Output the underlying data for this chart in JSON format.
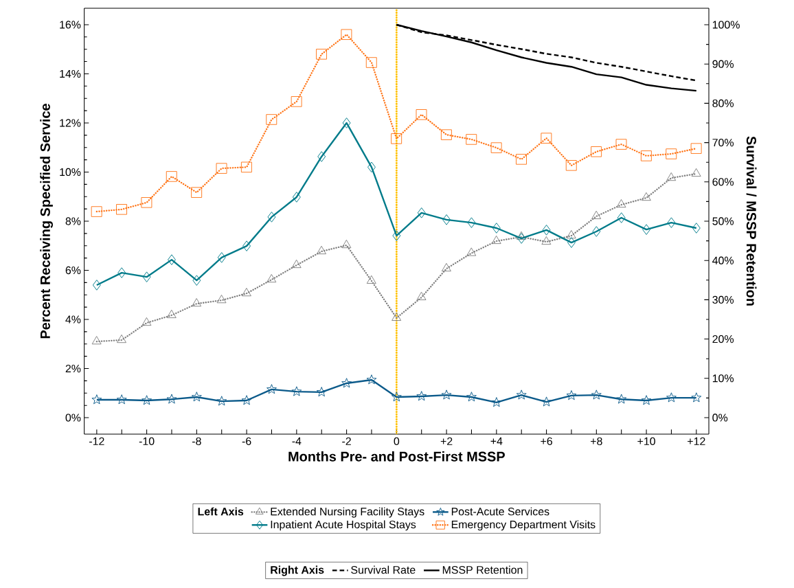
{
  "chart_data": {
    "type": "line",
    "xlabel": "Months Pre- and Post-First MSSP",
    "ylabel": "Percent Receiving Specified Service",
    "y2label": "Survival / MSSP Retention",
    "x": [
      -12,
      -11,
      -10,
      -9,
      -8,
      -7,
      -6,
      -5,
      -4,
      -3,
      -2,
      -1,
      0,
      1,
      2,
      3,
      4,
      5,
      6,
      7,
      8,
      9,
      10,
      11,
      12
    ],
    "series": [
      {
        "name": "Extended Nursing Facility Stays",
        "color": "#808080",
        "marker": "triangle",
        "line_style": "dotted",
        "values": [
          3.1,
          3.16,
          3.86,
          4.17,
          4.64,
          4.78,
          5.06,
          5.62,
          6.21,
          6.77,
          7.02,
          5.57,
          4.06,
          4.9,
          6.07,
          6.7,
          7.19,
          7.36,
          7.16,
          7.41,
          8.2,
          8.67,
          8.95,
          9.76,
          9.93
        ]
      },
      {
        "name": "Post-Acute Services",
        "color": "#0b5a8a",
        "marker": "star",
        "line_style": "solid",
        "values": [
          0.73,
          0.73,
          0.7,
          0.75,
          0.84,
          0.67,
          0.7,
          1.15,
          1.06,
          1.04,
          1.4,
          1.54,
          0.84,
          0.87,
          0.92,
          0.84,
          0.62,
          0.92,
          0.64,
          0.9,
          0.92,
          0.75,
          0.7,
          0.81,
          0.81
        ]
      },
      {
        "name": "Inpatient Acute Hospital Stays",
        "color": "#007b8a",
        "marker": "diamond",
        "line_style": "solid",
        "values": [
          5.4,
          5.9,
          5.73,
          6.43,
          5.59,
          6.52,
          6.99,
          8.17,
          8.98,
          10.63,
          12.0,
          10.2,
          7.41,
          8.34,
          8.06,
          7.94,
          7.72,
          7.3,
          7.64,
          7.13,
          7.58,
          8.14,
          7.66,
          7.94,
          7.72
        ]
      },
      {
        "name": "Emergency Department Visits",
        "color": "#ff7518",
        "marker": "square",
        "line_style": "dotted",
        "values": [
          8.39,
          8.48,
          8.76,
          9.82,
          9.17,
          10.15,
          10.2,
          12.14,
          12.87,
          14.8,
          15.6,
          14.46,
          11.36,
          12.34,
          11.52,
          11.33,
          10.99,
          10.52,
          11.38,
          10.27,
          10.83,
          11.13,
          10.66,
          10.74,
          10.96
        ]
      },
      {
        "name": "Survival Rate",
        "color": "#000000",
        "axis": "y2",
        "marker": "none",
        "line_style": "dashed",
        "x": [
          0,
          1,
          2,
          3,
          4,
          5,
          6,
          7,
          8,
          9,
          10,
          11,
          12
        ],
        "values": [
          100,
          98.1,
          97.3,
          96.1,
          94.9,
          93.8,
          92.6,
          91.7,
          90.3,
          89.3,
          88.1,
          86.9,
          85.8
        ]
      },
      {
        "name": "MSSP Retention",
        "color": "#000000",
        "axis": "y2",
        "marker": "none",
        "line_style": "solid",
        "x": [
          0,
          1,
          2,
          3,
          4,
          5,
          6,
          7,
          8,
          9,
          10,
          11,
          12
        ],
        "values": [
          100,
          98.4,
          97.0,
          95.5,
          93.5,
          91.7,
          90.3,
          89.3,
          87.4,
          86.6,
          84.7,
          83.8,
          83.2
        ]
      }
    ],
    "xlim": [
      -12.5,
      12.5
    ],
    "xticks": [
      -12,
      {
        "value": -11,
        "label": null
      },
      -10,
      {
        "value": -9,
        "label": null
      },
      -8,
      {
        "value": -7,
        "label": null
      },
      -6,
      {
        "value": -5,
        "label": null
      },
      -4,
      {
        "value": -3,
        "label": null
      },
      -2,
      {
        "value": -1,
        "label": null
      },
      0,
      {
        "value": 1,
        "label": null
      },
      {
        "value": 2,
        "label": "+2"
      },
      {
        "value": 3,
        "label": null
      },
      {
        "value": 4,
        "label": "+4"
      },
      {
        "value": 5,
        "label": null
      },
      {
        "value": 6,
        "label": "+6"
      },
      {
        "value": 7,
        "label": null
      },
      {
        "value": 8,
        "label": "+8"
      },
      {
        "value": 9,
        "label": null
      },
      {
        "value": 10,
        "label": "+10"
      },
      {
        "value": 11,
        "label": null
      },
      {
        "value": 12,
        "label": "+12"
      }
    ],
    "ylim": [
      -0.67,
      16.67
    ],
    "yticks": [
      {
        "value": 0,
        "label": "0%"
      },
      {
        "value": 2,
        "label": "2%"
      },
      {
        "value": 4,
        "label": "4%"
      },
      {
        "value": 6,
        "label": "6%"
      },
      {
        "value": 8,
        "label": "8%"
      },
      {
        "value": 10,
        "label": "10%"
      },
      {
        "value": 12,
        "label": "12%"
      },
      {
        "value": 14,
        "label": "14%"
      },
      {
        "value": 16,
        "label": "16%"
      }
    ],
    "y2lim": [
      -4.2,
      104.2
    ],
    "y2ticks": [
      {
        "value": 0,
        "label": "0%"
      },
      {
        "value": 10,
        "label": "10%"
      },
      {
        "value": 20,
        "label": "20%"
      },
      {
        "value": 30,
        "label": "30%"
      },
      {
        "value": 40,
        "label": "40%"
      },
      {
        "value": 50,
        "label": "50%"
      },
      {
        "value": 60,
        "label": "60%"
      },
      {
        "value": 70,
        "label": "70%"
      },
      {
        "value": 80,
        "label": "80%"
      },
      {
        "value": 90,
        "label": "90%"
      },
      {
        "value": 100,
        "label": "100%"
      }
    ],
    "ref_lines": [
      {
        "axis": "x",
        "value": 0,
        "color": "#ffc000",
        "line_style": "dotted"
      }
    ],
    "annotations": [
      "Left Axis",
      "Right Axis"
    ],
    "grid": false,
    "legend": "bottom"
  }
}
